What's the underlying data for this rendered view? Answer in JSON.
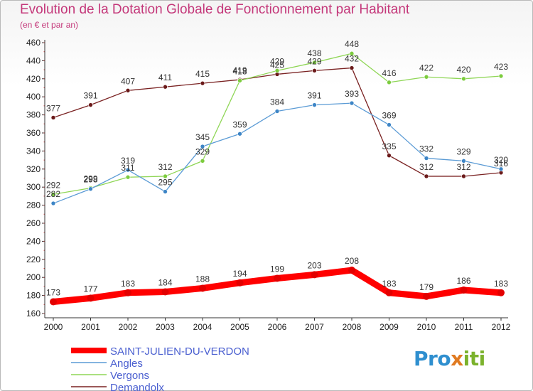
{
  "title": "Evolution de la Dotation Globale de Fonctionnement par Habitant",
  "subtitle": "(en € et par an)",
  "logo": {
    "parts": [
      "Pro",
      "x",
      "iti"
    ]
  },
  "chart_data": {
    "type": "line",
    "categories": [
      "2000",
      "2001",
      "2002",
      "2003",
      "2004",
      "2005",
      "2006",
      "2007",
      "2008",
      "2009",
      "2010",
      "2011",
      "2012"
    ],
    "ylim": [
      160,
      460
    ],
    "yticks": [
      160,
      180,
      200,
      220,
      240,
      260,
      280,
      300,
      320,
      340,
      360,
      380,
      400,
      420,
      440,
      460
    ],
    "grid": false,
    "legend_position": "bottom-left",
    "series": [
      {
        "name": "SAINT-JULIEN-DU-VERDON",
        "color": "#ff0000",
        "marker": "#e30000",
        "values": [
          173,
          177,
          183,
          184,
          188,
          194,
          199,
          203,
          208,
          183,
          179,
          186,
          183
        ],
        "labels": [
          "173",
          "177",
          "183",
          "184",
          "188",
          "194",
          "199",
          "203",
          "208",
          "183",
          "179",
          "186",
          "183"
        ]
      },
      {
        "name": "Angles",
        "color": "#5b9bd5",
        "marker": "#3d85c6",
        "values": [
          282,
          298,
          319,
          295,
          345,
          359,
          384,
          391,
          393,
          369,
          332,
          329,
          320
        ],
        "labels": [
          "282",
          "298",
          "319",
          "295",
          "345",
          "359",
          "384",
          "391",
          "393",
          "369",
          "332",
          "329",
          "320"
        ]
      },
      {
        "name": "Vergons",
        "color": "#8fd656",
        "marker": "#7ccc3e",
        "values": [
          292,
          299,
          311,
          312,
          329,
          418,
          429,
          438,
          448,
          416,
          422,
          420,
          423
        ],
        "labels": [
          "292",
          "299",
          "311",
          "312",
          "329",
          "418",
          "429",
          "438",
          "448",
          "416",
          "422",
          "420",
          "423"
        ]
      },
      {
        "name": "Demandolx",
        "color": "#7a2222",
        "marker": "#6b1a1a",
        "values": [
          377,
          391,
          407,
          411,
          415,
          419,
          425,
          429,
          432,
          335,
          312,
          312,
          316
        ],
        "labels": [
          "377",
          "391",
          "407",
          "411",
          "415",
          "419",
          "425",
          "429",
          "432",
          "335",
          "312",
          "312",
          "316"
        ]
      }
    ]
  }
}
